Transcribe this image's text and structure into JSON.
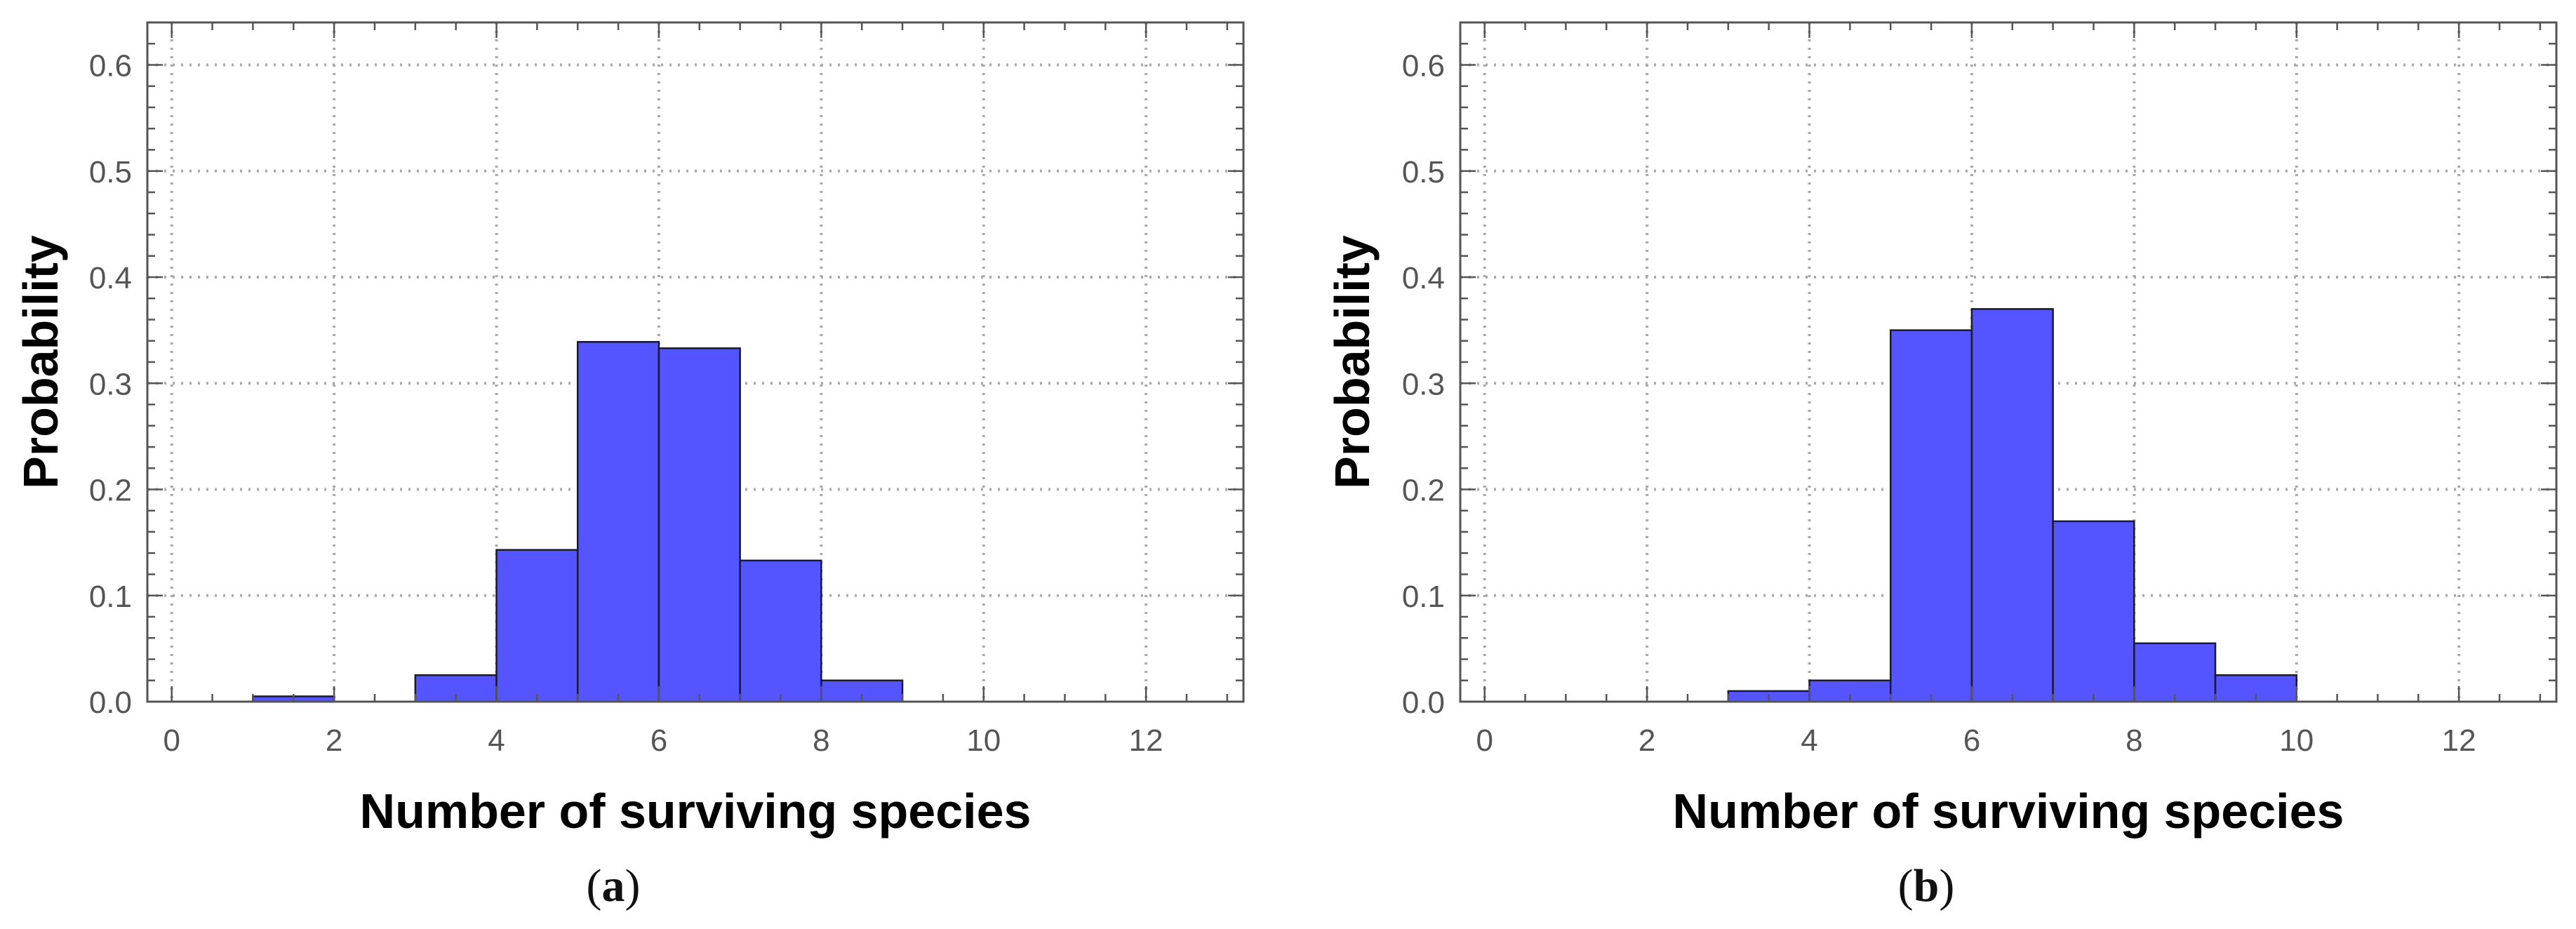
{
  "colors": {
    "bar_fill": "#5555FF",
    "bar_edge": "#1a1a2e",
    "frame": "#555555",
    "grid": "#aaaaaa",
    "tick_label": "#555555"
  },
  "chart_data": [
    {
      "type": "bar",
      "panel": "(a)",
      "xlabel": "Number of surviving species",
      "ylabel": "Probability",
      "xlim": [
        -0.3,
        13.2
      ],
      "ylim": [
        0,
        0.64
      ],
      "xticks": [
        0,
        2,
        4,
        6,
        8,
        10,
        12
      ],
      "yticks": [
        0.0,
        0.1,
        0.2,
        0.3,
        0.4,
        0.5,
        0.6
      ],
      "ytick_labels": [
        "0.0",
        "0.1",
        "0.2",
        "0.3",
        "0.4",
        "0.5",
        "0.6"
      ],
      "grid": true,
      "bins": [
        {
          "x0": 1,
          "x1": 2,
          "value": 0.005
        },
        {
          "x0": 3,
          "x1": 4,
          "value": 0.025
        },
        {
          "x0": 4,
          "x1": 5,
          "value": 0.143
        },
        {
          "x0": 5,
          "x1": 6,
          "value": 0.339
        },
        {
          "x0": 6,
          "x1": 7,
          "value": 0.333
        },
        {
          "x0": 7,
          "x1": 8,
          "value": 0.133
        },
        {
          "x0": 8,
          "x1": 9,
          "value": 0.02
        }
      ]
    },
    {
      "type": "bar",
      "panel": "(b)",
      "xlabel": "Number of surviving species",
      "ylabel": "Probability",
      "xlim": [
        -0.3,
        13.2
      ],
      "ylim": [
        0,
        0.64
      ],
      "xticks": [
        0,
        2,
        4,
        6,
        8,
        10,
        12
      ],
      "yticks": [
        0.0,
        0.1,
        0.2,
        0.3,
        0.4,
        0.5,
        0.6
      ],
      "ytick_labels": [
        "0.0",
        "0.1",
        "0.2",
        "0.3",
        "0.4",
        "0.5",
        "0.6"
      ],
      "grid": true,
      "bins": [
        {
          "x0": 3,
          "x1": 4,
          "value": 0.01
        },
        {
          "x0": 4,
          "x1": 5,
          "value": 0.02
        },
        {
          "x0": 5,
          "x1": 6,
          "value": 0.35
        },
        {
          "x0": 6,
          "x1": 7,
          "value": 0.37
        },
        {
          "x0": 7,
          "x1": 8,
          "value": 0.17
        },
        {
          "x0": 8,
          "x1": 9,
          "value": 0.055
        },
        {
          "x0": 9,
          "x1": 10,
          "value": 0.025
        }
      ]
    }
  ],
  "captions": [
    {
      "letter": "a"
    },
    {
      "letter": "b"
    }
  ]
}
